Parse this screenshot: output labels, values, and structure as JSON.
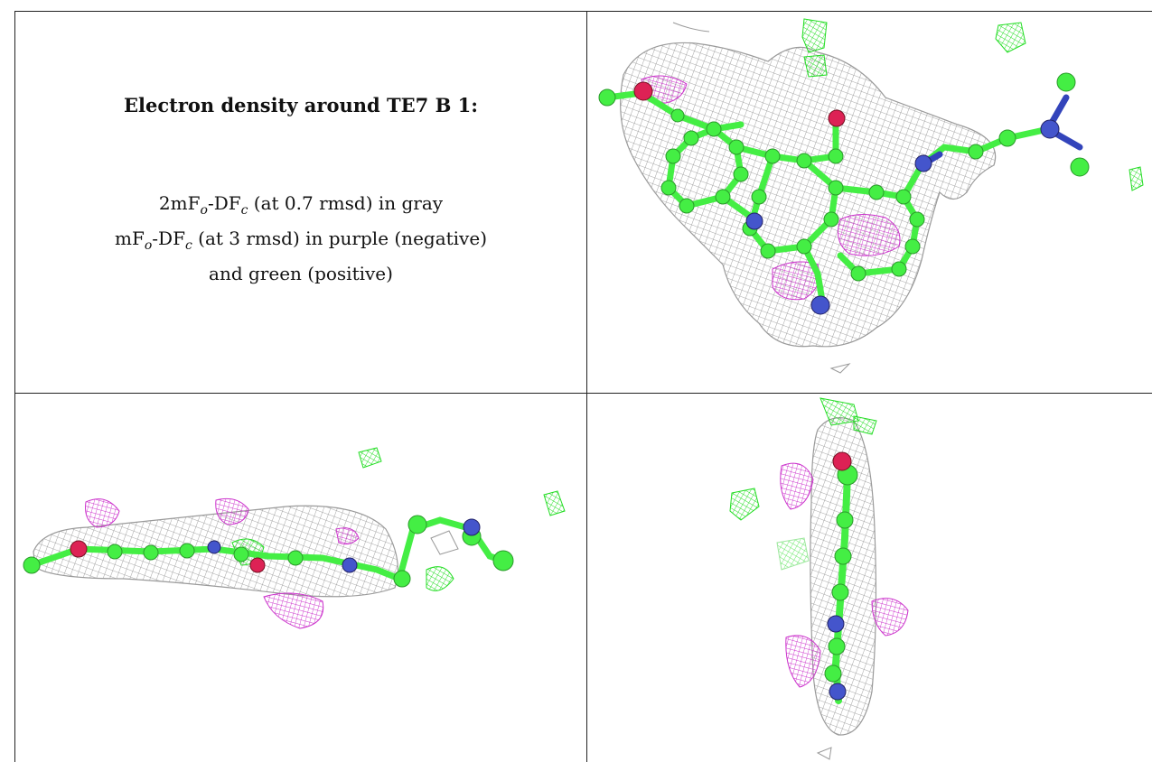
{
  "caption": {
    "title": "Electron density around TE7 B 1:",
    "line1": {
      "prefix": "2mF",
      "sub_o": "o",
      "mid": "-DF",
      "sub_c": "c",
      "suffix": " (at 0.7 rmsd) in gray"
    },
    "line2": {
      "prefix": "mF",
      "sub_o": "o",
      "mid": "-DF",
      "sub_c": "c",
      "suffix": " (at 3 rmsd) in purple (negative)"
    },
    "line3": "and green (positive)"
  },
  "colors": {
    "mesh_gray": "#8c8c8c",
    "mesh_purple": "#cc33cc",
    "mesh_green": "#22dd22",
    "carbon": "#44ee44",
    "nitrogen": "#3344bb",
    "oxygen": "#dd2255"
  }
}
